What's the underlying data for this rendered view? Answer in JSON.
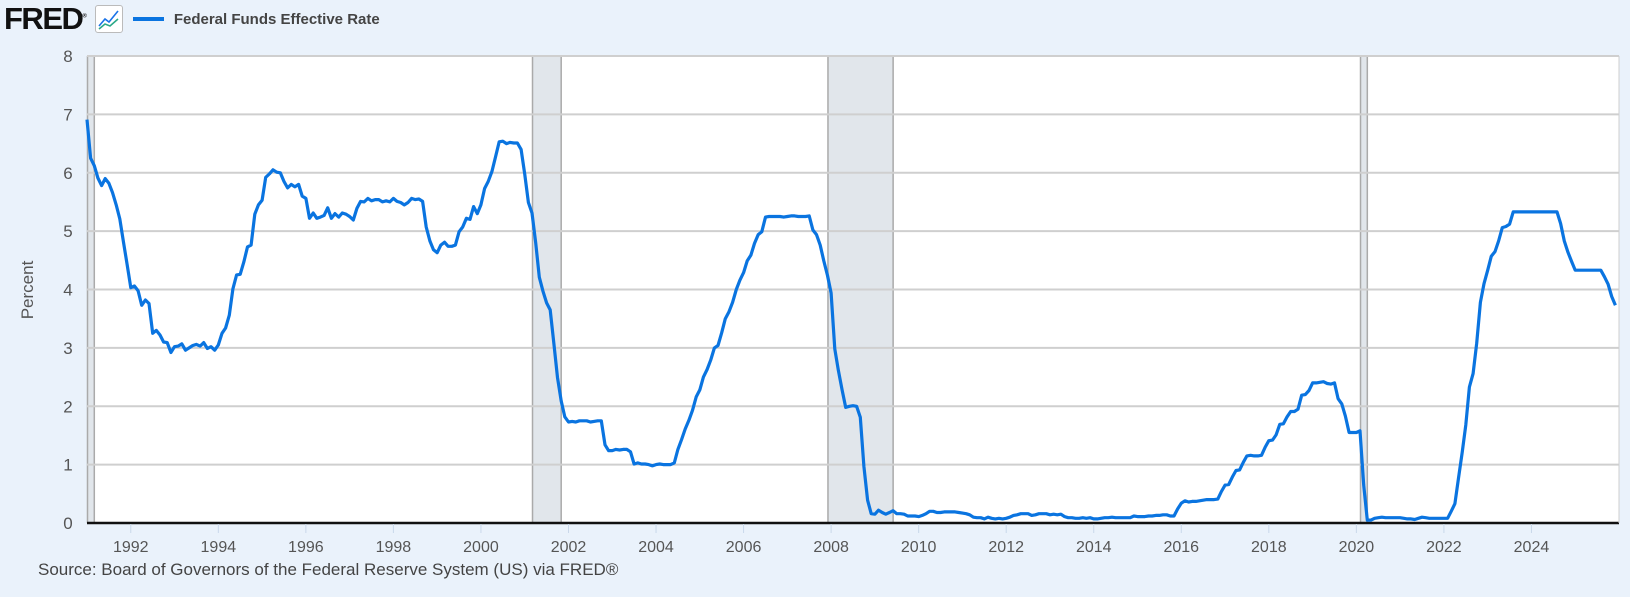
{
  "header": {
    "logo": "FRED",
    "legend_label": "Federal Funds Effective Rate"
  },
  "source": "Source: Board of Governors of the Federal Reserve System (US) via FRED®",
  "colors": {
    "line": "#0a74e0",
    "recession": "#e1e6eb",
    "background": "#eaf2fb"
  },
  "chart_data": {
    "type": "line",
    "ylabel": "Percent",
    "ylim": [
      0,
      8
    ],
    "yticks": [
      "0",
      "1",
      "2",
      "3",
      "4",
      "5",
      "6",
      "7",
      "8"
    ],
    "xlim": [
      "1991-01",
      "2026-01"
    ],
    "xticks": [
      "1992",
      "1994",
      "1996",
      "1998",
      "2000",
      "2002",
      "2004",
      "2006",
      "2008",
      "2010",
      "2012",
      "2014",
      "2016",
      "2018",
      "2020",
      "2022",
      "2024"
    ],
    "grid": "horizontal",
    "legend": "top-left",
    "recessions": [
      [
        "1990-07",
        "1991-03"
      ],
      [
        "2001-03",
        "2001-11"
      ],
      [
        "2007-12",
        "2009-06"
      ],
      [
        "2020-02",
        "2020-04"
      ]
    ],
    "series": [
      {
        "name": "Federal Funds Effective Rate",
        "frequency": "monthly",
        "values_by_year": {
          "1991": [
            6.91,
            6.25,
            6.12,
            5.91,
            5.78,
            5.9,
            5.82,
            5.66,
            5.45,
            5.21,
            4.81,
            4.43
          ],
          "1992": [
            4.03,
            4.06,
            3.98,
            3.73,
            3.82,
            3.76,
            3.25,
            3.3,
            3.22,
            3.1,
            3.09,
            2.92
          ],
          "1993": [
            3.02,
            3.03,
            3.07,
            2.96,
            3.0,
            3.04,
            3.06,
            3.03,
            3.09,
            2.99,
            3.02,
            2.96
          ],
          "1994": [
            3.05,
            3.25,
            3.34,
            3.56,
            4.01,
            4.25,
            4.26,
            4.47,
            4.73,
            4.76,
            5.29,
            5.45
          ],
          "1995": [
            5.53,
            5.92,
            5.98,
            6.05,
            6.01,
            6.0,
            5.85,
            5.74,
            5.8,
            5.76,
            5.8,
            5.6
          ],
          "1996": [
            5.56,
            5.22,
            5.31,
            5.22,
            5.24,
            5.27,
            5.4,
            5.22,
            5.3,
            5.24,
            5.31,
            5.29
          ],
          "1997": [
            5.25,
            5.19,
            5.39,
            5.51,
            5.5,
            5.56,
            5.52,
            5.54,
            5.54,
            5.5,
            5.52,
            5.5
          ],
          "1998": [
            5.56,
            5.51,
            5.49,
            5.45,
            5.49,
            5.56,
            5.54,
            5.55,
            5.51,
            5.07,
            4.83,
            4.68
          ],
          "1999": [
            4.63,
            4.76,
            4.81,
            4.74,
            4.74,
            4.76,
            4.99,
            5.07,
            5.22,
            5.2,
            5.42,
            5.3
          ],
          "2000": [
            5.45,
            5.73,
            5.85,
            6.02,
            6.27,
            6.53,
            6.54,
            6.5,
            6.52,
            6.51,
            6.51,
            6.4
          ],
          "2001": [
            5.98,
            5.49,
            5.31,
            4.8,
            4.21,
            3.97,
            3.77,
            3.65,
            3.07,
            2.49,
            2.09,
            1.82
          ],
          "2002": [
            1.73,
            1.74,
            1.73,
            1.75,
            1.75,
            1.75,
            1.73,
            1.74,
            1.75,
            1.75,
            1.34,
            1.24
          ],
          "2003": [
            1.24,
            1.26,
            1.25,
            1.26,
            1.26,
            1.22,
            1.01,
            1.03,
            1.01,
            1.01,
            1.0,
            0.98
          ],
          "2004": [
            1.0,
            1.01,
            1.0,
            1.0,
            1.0,
            1.03,
            1.26,
            1.43,
            1.61,
            1.76,
            1.93,
            2.16
          ],
          "2005": [
            2.28,
            2.5,
            2.63,
            2.79,
            3.0,
            3.04,
            3.26,
            3.5,
            3.62,
            3.78,
            4.0,
            4.16
          ],
          "2006": [
            4.29,
            4.49,
            4.59,
            4.79,
            4.94,
            4.99,
            5.24,
            5.25,
            5.25,
            5.25,
            5.25,
            5.24
          ],
          "2007": [
            5.25,
            5.26,
            5.26,
            5.25,
            5.25,
            5.25,
            5.26,
            5.02,
            4.94,
            4.76,
            4.49,
            4.24
          ],
          "2008": [
            3.94,
            2.98,
            2.61,
            2.28,
            1.98,
            2.0,
            2.01,
            2.0,
            1.81,
            0.97,
            0.39,
            0.16
          ],
          "2009": [
            0.15,
            0.22,
            0.18,
            0.15,
            0.18,
            0.21,
            0.16,
            0.16,
            0.15,
            0.12,
            0.12,
            0.12
          ],
          "2010": [
            0.11,
            0.13,
            0.16,
            0.2,
            0.2,
            0.18,
            0.18,
            0.19,
            0.19,
            0.19,
            0.19,
            0.18
          ],
          "2011": [
            0.17,
            0.16,
            0.14,
            0.1,
            0.09,
            0.09,
            0.07,
            0.1,
            0.08,
            0.07,
            0.08,
            0.07
          ],
          "2012": [
            0.08,
            0.1,
            0.13,
            0.14,
            0.16,
            0.16,
            0.16,
            0.13,
            0.14,
            0.16,
            0.16,
            0.16
          ],
          "2013": [
            0.14,
            0.15,
            0.14,
            0.15,
            0.11,
            0.09,
            0.09,
            0.08,
            0.08,
            0.09,
            0.08,
            0.09
          ],
          "2014": [
            0.07,
            0.07,
            0.08,
            0.09,
            0.09,
            0.1,
            0.09,
            0.09,
            0.09,
            0.09,
            0.09,
            0.12
          ],
          "2015": [
            0.11,
            0.11,
            0.11,
            0.12,
            0.12,
            0.13,
            0.13,
            0.14,
            0.14,
            0.12,
            0.12,
            0.24
          ],
          "2016": [
            0.34,
            0.38,
            0.36,
            0.37,
            0.37,
            0.38,
            0.39,
            0.4,
            0.4,
            0.4,
            0.41,
            0.54
          ],
          "2017": [
            0.65,
            0.66,
            0.79,
            0.9,
            0.91,
            1.04,
            1.15,
            1.16,
            1.15,
            1.15,
            1.16,
            1.3
          ],
          "2018": [
            1.41,
            1.42,
            1.51,
            1.69,
            1.7,
            1.82,
            1.91,
            1.91,
            1.95,
            2.19,
            2.2,
            2.27
          ],
          "2019": [
            2.4,
            2.4,
            2.41,
            2.42,
            2.39,
            2.38,
            2.4,
            2.13,
            2.04,
            1.83,
            1.55,
            1.55
          ],
          "2020": [
            1.55,
            1.58,
            0.65,
            0.05,
            0.05,
            0.08,
            0.09,
            0.1,
            0.09,
            0.09,
            0.09,
            0.09
          ],
          "2021": [
            0.09,
            0.08,
            0.07,
            0.07,
            0.06,
            0.08,
            0.1,
            0.09,
            0.08,
            0.08,
            0.08,
            0.08
          ],
          "2022": [
            0.08,
            0.08,
            0.2,
            0.33,
            0.77,
            1.21,
            1.68,
            2.33,
            2.56,
            3.08,
            3.78,
            4.1
          ],
          "2023": [
            4.33,
            4.57,
            4.65,
            4.83,
            5.06,
            5.08,
            5.12,
            5.33,
            5.33,
            5.33,
            5.33,
            5.33
          ],
          "2024": [
            5.33,
            5.33,
            5.33,
            5.33,
            5.33,
            5.33,
            5.33,
            5.33,
            5.13,
            4.83,
            4.64,
            4.48
          ],
          "2025": [
            4.33,
            4.33,
            4.33,
            4.33,
            4.33,
            4.33,
            4.33,
            4.33,
            4.22,
            4.09,
            3.88,
            3.73
          ]
        }
      }
    ]
  }
}
